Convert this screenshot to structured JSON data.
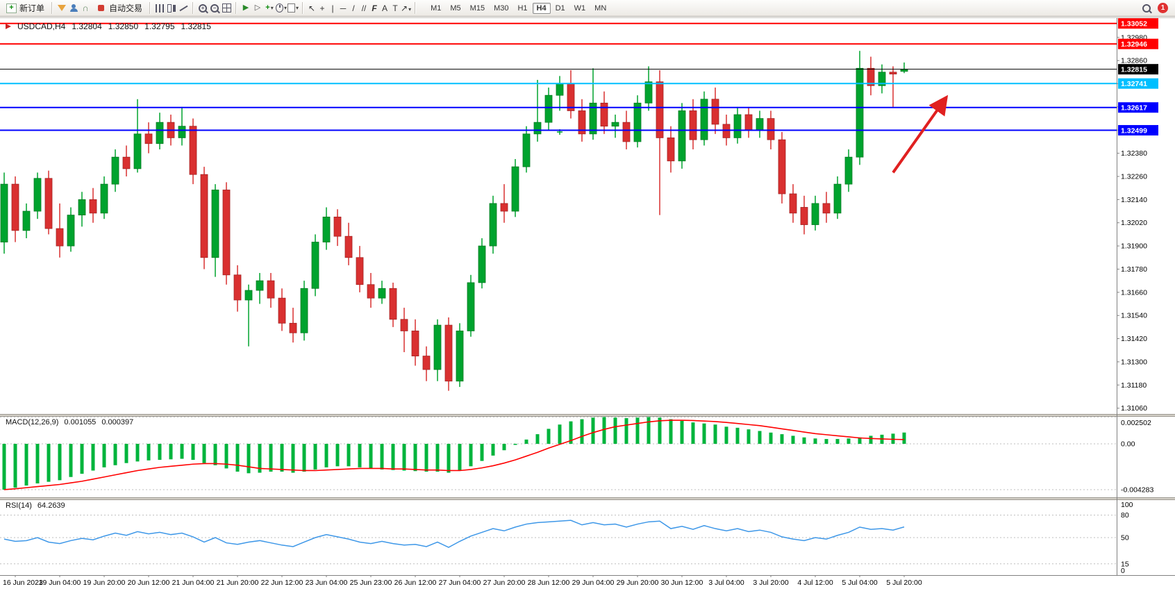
{
  "toolbar": {
    "new_order_label": "新订单",
    "auto_trading_label": "自动交易",
    "timeframes": [
      "M1",
      "M5",
      "M15",
      "M30",
      "H1",
      "H4",
      "D1",
      "W1",
      "MN"
    ],
    "active_timeframe": "H4",
    "notification_count": "1"
  },
  "chart": {
    "quote": {
      "symbol_period": "USDCAD,H4",
      "open": "1.32804",
      "high": "1.32850",
      "low": "1.32795",
      "close": "1.32815"
    }
  },
  "indicators": {
    "macd": {
      "name": "MACD(12,26,9)",
      "value_main": "0.001055",
      "value_signal": "0.000397"
    },
    "rsi": {
      "name": "RSI(14)",
      "value": "64.2639"
    }
  },
  "chart_data": {
    "type": "candlestick",
    "symbol": "USDCAD",
    "timeframe": "H4",
    "title": "USDCAD,H4 1.32804 1.32850 1.32795 1.32815",
    "colors": {
      "up": "#00a32e",
      "down": "#d93030",
      "macd_hist": "#00b43c",
      "macd_signal": "#ff0000",
      "rsi_line": "#3d97e8",
      "grid": "#bdbdbd",
      "axis": "#808080",
      "arrow": "#e02020"
    },
    "price_axis": {
      "visible_max": 1.3308,
      "visible_min": 1.3103,
      "tick_step": 0.0012,
      "ticks": [
        "1.32980",
        "1.32860",
        "1.32740",
        "1.32620",
        "1.32500",
        "1.32380",
        "1.32260",
        "1.32140",
        "1.32020",
        "1.31900",
        "1.31780",
        "1.31660",
        "1.31540",
        "1.31420",
        "1.31300",
        "1.31180",
        "1.31060"
      ]
    },
    "time_labels": [
      "16 Jun 2023",
      "19 Jun 04:00",
      "19 Jun 20:00",
      "20 Jun 12:00",
      "21 Jun 04:00",
      "21 Jun 20:00",
      "22 Jun 12:00",
      "23 Jun 04:00",
      "25 Jun 23:00",
      "26 Jun 12:00",
      "27 Jun 04:00",
      "27 Jun 20:00",
      "28 Jun 12:00",
      "29 Jun 04:00",
      "29 Jun 20:00",
      "30 Jun 12:00",
      "3 Jul 04:00",
      "3 Jul 20:00",
      "4 Jul 12:00",
      "5 Jul 04:00",
      "5 Jul 20:00"
    ],
    "hlines": [
      {
        "price": 1.33052,
        "label": "1.33052",
        "color": "#ff0000",
        "width": 2
      },
      {
        "price": 1.32946,
        "label": "1.32946",
        "color": "#ff0000",
        "width": 2
      },
      {
        "price": 1.32815,
        "label": "1.32815",
        "color": "#000000",
        "width": 1
      },
      {
        "price": 1.32741,
        "label": "1.32741",
        "color": "#00bfff",
        "width": 2
      },
      {
        "price": 1.32617,
        "label": "1.32617",
        "color": "#0000ff",
        "width": 2
      },
      {
        "price": 1.32499,
        "label": "1.32499",
        "color": "#0000ff",
        "width": 2
      }
    ],
    "current_price": 1.32815,
    "candles": [
      [
        1.3192,
        1.3228,
        1.3186,
        1.3222
      ],
      [
        1.3222,
        1.3226,
        1.3192,
        1.3198
      ],
      [
        1.3198,
        1.3212,
        1.3194,
        1.3208
      ],
      [
        1.3208,
        1.3228,
        1.3204,
        1.3225
      ],
      [
        1.3225,
        1.3229,
        1.3196,
        1.3199
      ],
      [
        1.3199,
        1.3212,
        1.3184,
        1.319
      ],
      [
        1.319,
        1.321,
        1.3187,
        1.3206
      ],
      [
        1.3206,
        1.3218,
        1.32,
        1.3214
      ],
      [
        1.3214,
        1.322,
        1.3202,
        1.3207
      ],
      [
        1.3207,
        1.3226,
        1.3204,
        1.3222
      ],
      [
        1.3222,
        1.324,
        1.3218,
        1.3236
      ],
      [
        1.3236,
        1.3242,
        1.3226,
        1.323
      ],
      [
        1.323,
        1.3266,
        1.3228,
        1.3248
      ],
      [
        1.3248,
        1.3254,
        1.3238,
        1.3243
      ],
      [
        1.3243,
        1.3259,
        1.324,
        1.3254
      ],
      [
        1.3254,
        1.3258,
        1.3242,
        1.3246
      ],
      [
        1.3246,
        1.3262,
        1.3242,
        1.3252
      ],
      [
        1.3252,
        1.3256,
        1.3222,
        1.3227
      ],
      [
        1.3227,
        1.3231,
        1.3178,
        1.3184
      ],
      [
        1.3184,
        1.3222,
        1.3174,
        1.3219
      ],
      [
        1.3219,
        1.3223,
        1.317,
        1.3175
      ],
      [
        1.3175,
        1.318,
        1.3156,
        1.3162
      ],
      [
        1.3162,
        1.317,
        1.3138,
        1.3167
      ],
      [
        1.3167,
        1.3176,
        1.316,
        1.3172
      ],
      [
        1.3172,
        1.3176,
        1.3158,
        1.3163
      ],
      [
        1.3163,
        1.3168,
        1.3146,
        1.315
      ],
      [
        1.315,
        1.3158,
        1.314,
        1.3145
      ],
      [
        1.3145,
        1.3172,
        1.3141,
        1.3168
      ],
      [
        1.3168,
        1.3196,
        1.3164,
        1.3192
      ],
      [
        1.3192,
        1.321,
        1.3188,
        1.3205
      ],
      [
        1.3205,
        1.3209,
        1.319,
        1.3195
      ],
      [
        1.3195,
        1.3202,
        1.318,
        1.3184
      ],
      [
        1.3184,
        1.319,
        1.3166,
        1.317
      ],
      [
        1.317,
        1.3176,
        1.3158,
        1.3163
      ],
      [
        1.3163,
        1.3172,
        1.316,
        1.3168
      ],
      [
        1.3168,
        1.3171,
        1.3148,
        1.3152
      ],
      [
        1.3152,
        1.3158,
        1.3135,
        1.3146
      ],
      [
        1.3146,
        1.3152,
        1.3128,
        1.3133
      ],
      [
        1.3133,
        1.3138,
        1.312,
        1.3126
      ],
      [
        1.3126,
        1.3152,
        1.312,
        1.3149
      ],
      [
        1.3149,
        1.3153,
        1.3115,
        1.312
      ],
      [
        1.312,
        1.315,
        1.3117,
        1.3146
      ],
      [
        1.3146,
        1.3175,
        1.3143,
        1.3171
      ],
      [
        1.3171,
        1.3194,
        1.3168,
        1.319
      ],
      [
        1.319,
        1.3216,
        1.3186,
        1.3212
      ],
      [
        1.3212,
        1.3222,
        1.3202,
        1.3208
      ],
      [
        1.3208,
        1.3235,
        1.3205,
        1.3231
      ],
      [
        1.3231,
        1.3252,
        1.3228,
        1.3248
      ],
      [
        1.3248,
        1.3276,
        1.3244,
        1.3254
      ],
      [
        1.3254,
        1.3272,
        1.325,
        1.3268
      ],
      [
        1.3268,
        1.3278,
        1.326,
        1.3274
      ],
      [
        1.3274,
        1.3281,
        1.3256,
        1.326
      ],
      [
        1.326,
        1.3266,
        1.3244,
        1.3248
      ],
      [
        1.3248,
        1.3282,
        1.3245,
        1.3264
      ],
      [
        1.3264,
        1.327,
        1.3248,
        1.3252
      ],
      [
        1.3252,
        1.3258,
        1.3246,
        1.3254
      ],
      [
        1.3254,
        1.326,
        1.324,
        1.3244
      ],
      [
        1.3244,
        1.3268,
        1.3241,
        1.3264
      ],
      [
        1.3264,
        1.3283,
        1.326,
        1.3275
      ],
      [
        1.3275,
        1.3281,
        1.3206,
        1.3246
      ],
      [
        1.3246,
        1.3252,
        1.3228,
        1.3234
      ],
      [
        1.3234,
        1.3264,
        1.323,
        1.326
      ],
      [
        1.326,
        1.3266,
        1.324,
        1.3245
      ],
      [
        1.3245,
        1.327,
        1.3242,
        1.3266
      ],
      [
        1.3266,
        1.3272,
        1.3248,
        1.3253
      ],
      [
        1.3253,
        1.3258,
        1.3242,
        1.3246
      ],
      [
        1.3246,
        1.3262,
        1.3243,
        1.3258
      ],
      [
        1.3258,
        1.3262,
        1.3246,
        1.325
      ],
      [
        1.325,
        1.326,
        1.3246,
        1.3256
      ],
      [
        1.3256,
        1.326,
        1.324,
        1.3245
      ],
      [
        1.3245,
        1.3249,
        1.3212,
        1.3217
      ],
      [
        1.3217,
        1.3222,
        1.3202,
        1.3207
      ],
      [
        1.321,
        1.3216,
        1.3196,
        1.3201
      ],
      [
        1.3201,
        1.3216,
        1.3198,
        1.3212
      ],
      [
        1.3212,
        1.3218,
        1.3202,
        1.3207
      ],
      [
        1.3207,
        1.3226,
        1.3204,
        1.3222
      ],
      [
        1.3222,
        1.324,
        1.3218,
        1.3236
      ],
      [
        1.3236,
        1.3291,
        1.3232,
        1.3282
      ],
      [
        1.3282,
        1.3288,
        1.3268,
        1.3273
      ],
      [
        1.3273,
        1.3284,
        1.3269,
        1.328
      ],
      [
        1.328,
        1.3283,
        1.3262,
        1.3279
      ],
      [
        1.32804,
        1.3285,
        1.32795,
        1.32815
      ]
    ],
    "macd": {
      "unit": 0.0001,
      "scale_labels": [
        {
          "text": "0.002502",
          "value": 25.02
        },
        {
          "text": "0.00",
          "value": 0
        },
        {
          "text": "-0.004283",
          "value": -42.83
        }
      ],
      "hist": [
        -42.83,
        -41,
        -39,
        -37,
        -35.5,
        -34,
        -31,
        -28,
        -25,
        -22,
        -20,
        -18,
        -16.5,
        -15.5,
        -15,
        -14.5,
        -14,
        -15,
        -18,
        -20,
        -23,
        -26,
        -27.5,
        -27,
        -26,
        -26,
        -27,
        -26,
        -24,
        -22,
        -21,
        -21,
        -22,
        -23,
        -24,
        -24.5,
        -25,
        -25.5,
        -26,
        -26,
        -27,
        -25,
        -21,
        -16,
        -11,
        -6,
        -1,
        4,
        9,
        14,
        18,
        21,
        23,
        24.5,
        25,
        24.5,
        24,
        24.5,
        25.02,
        24.5,
        23,
        21.5,
        20,
        19,
        18,
        16,
        15,
        13.5,
        12,
        10.5,
        9,
        7.5,
        6,
        5,
        4.5,
        4.5,
        5,
        6,
        7.5,
        8.5,
        9.5,
        10.55
      ],
      "signal": [
        -42.8,
        -42,
        -41,
        -40,
        -39,
        -38,
        -36.5,
        -35,
        -33,
        -31,
        -29,
        -27,
        -25,
        -23.5,
        -22,
        -21,
        -20,
        -19,
        -18.5,
        -18.5,
        -19,
        -20,
        -21.5,
        -23,
        -23.5,
        -24,
        -24.5,
        -25,
        -25,
        -24.5,
        -24,
        -23.5,
        -23,
        -23,
        -23,
        -23.5,
        -23.5,
        -24,
        -24.5,
        -24.5,
        -25,
        -25,
        -24,
        -22.5,
        -20.5,
        -18,
        -15,
        -11.5,
        -8,
        -4,
        -0.5,
        3,
        7,
        10.5,
        13.5,
        16,
        17.5,
        19,
        20.5,
        21.5,
        22,
        22,
        21.8,
        21.3,
        20.8,
        20,
        19,
        18,
        17,
        15.5,
        14,
        12.5,
        11,
        9.5,
        8.5,
        7.5,
        6.5,
        5.5,
        5,
        4.6,
        4.2,
        3.97
      ]
    },
    "rsi": {
      "scale_labels": [
        {
          "text": "100",
          "value": 100
        },
        {
          "text": "80",
          "value": 80
        },
        {
          "text": "50",
          "value": 50
        },
        {
          "text": "15",
          "value": 15
        },
        {
          "text": "0",
          "value": 0
        }
      ],
      "level_lines": [
        80,
        50,
        15
      ],
      "values": [
        48,
        45,
        46,
        50,
        44,
        42,
        46,
        49,
        47,
        52,
        56,
        53,
        58,
        55,
        57,
        54,
        56,
        51,
        44,
        50,
        43,
        41,
        44,
        46,
        43,
        40,
        38,
        44,
        50,
        54,
        51,
        48,
        44,
        42,
        45,
        42,
        40,
        41,
        38,
        44,
        37,
        45,
        52,
        57,
        62,
        59,
        64,
        68,
        70,
        71,
        72,
        73,
        67,
        70,
        67,
        68,
        64,
        68,
        71,
        72,
        62,
        65,
        61,
        66,
        62,
        59,
        62,
        58,
        60,
        57,
        51,
        48,
        46,
        50,
        48,
        53,
        57,
        64,
        61,
        62,
        60,
        64.26
      ]
    },
    "annotations": {
      "arrow": {
        "from_bar": 80,
        "from_price": 1.3228,
        "to_bar": 84.8,
        "to_price": 1.3267,
        "color": "#e02020"
      },
      "trade_marker": {
        "bar": 50,
        "price": 1.3249,
        "color": "#00a32e"
      }
    }
  }
}
